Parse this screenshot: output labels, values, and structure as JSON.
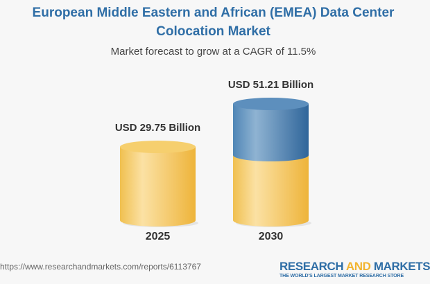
{
  "title_line1": "European Middle Eastern and African (EMEA) Data Center",
  "title_line2": "Colocation Market",
  "subtitle": "Market forecast to grow at a CAGR of 11.5%",
  "chart_data": {
    "type": "bar",
    "style": "3d-cylinder",
    "categories": [
      "2025",
      "2030"
    ],
    "values": [
      29.75,
      51.21
    ],
    "data_labels": [
      "USD 29.75 Billion",
      "USD 51.21 Billion"
    ],
    "unit": "USD Billion",
    "cagr": "11.5%",
    "colors": {
      "base": "#f3c55a",
      "growth": "#4a7fae"
    }
  },
  "source_url": "https://www.researchandmarkets.com/reports/6113767",
  "logo": {
    "word1": "RESEARCH",
    "word2": "AND",
    "word3": "MARKETS",
    "tagline": "THE WORLD'S LARGEST MARKET RESEARCH STORE"
  }
}
